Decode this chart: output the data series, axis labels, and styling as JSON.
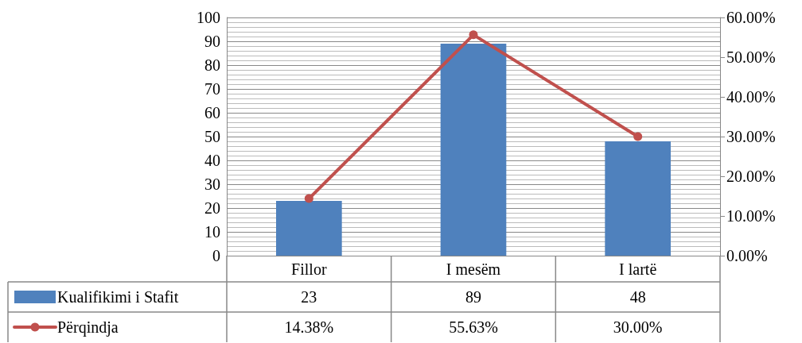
{
  "chart_data": {
    "type": "bar",
    "categories": [
      "Fillor",
      "I mesëm",
      "I lartë"
    ],
    "series": [
      {
        "name": "Kualifikimi i Stafit",
        "color": "#4f81bd",
        "values": [
          23,
          89,
          48
        ],
        "value_labels": [
          "23",
          "89",
          "48"
        ]
      },
      {
        "name": "Përqindja",
        "type": "line",
        "axis": "y2",
        "color": "#c0504d",
        "values": [
          14.38,
          55.63,
          30.0
        ],
        "value_labels": [
          "14.38%",
          "55.63%",
          "30.00%"
        ],
        "marker": "circle"
      }
    ],
    "ylim": [
      0,
      100
    ],
    "yticks": [
      0,
      10,
      20,
      30,
      40,
      50,
      60,
      70,
      80,
      90,
      100
    ],
    "y2lim": [
      0,
      60
    ],
    "y2ticks": [
      {
        "value": 0,
        "label": "0.00%"
      },
      {
        "value": 10,
        "label": "10.00%"
      },
      {
        "value": 20,
        "label": "20.00%"
      },
      {
        "value": 30,
        "label": "30.00%"
      },
      {
        "value": 40,
        "label": "40.00%"
      },
      {
        "value": 50,
        "label": "50.00%"
      },
      {
        "value": 60,
        "label": "60.00%"
      }
    ],
    "grid": "y",
    "legend": "bottom"
  }
}
